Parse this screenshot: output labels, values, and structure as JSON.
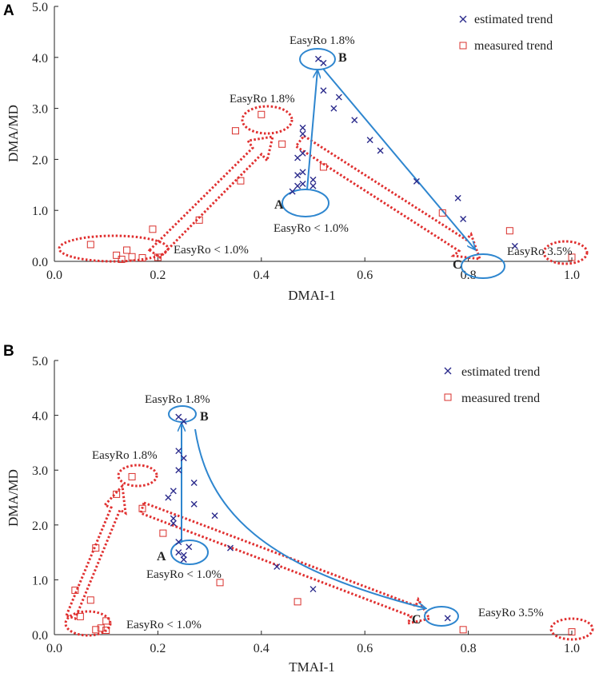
{
  "colors": {
    "estimated": "#2b2b8c",
    "measured": "#d9302c",
    "arrow_blue": "#2e86cf",
    "ellipse_red": "#e03030",
    "axis": "#222222"
  },
  "legend": {
    "estimated": "estimated trend",
    "measured": "measured trend"
  },
  "chart_data": [
    {
      "type": "scatter",
      "panel": "A",
      "xlabel": "DMAI-1",
      "ylabel": "DMA/MD",
      "xlim": [
        0.0,
        1.0
      ],
      "ylim": [
        0.0,
        5.0
      ],
      "xticks": [
        "0.0",
        "0.2",
        "0.4",
        "0.6",
        "0.8",
        "1.0"
      ],
      "yticks": [
        "0.0",
        "1.0",
        "2.0",
        "3.0",
        "4.0",
        "5.0"
      ],
      "series": [
        {
          "name": "estimated trend",
          "marker": "x",
          "points": [
            [
              0.51,
              3.97
            ],
            [
              0.52,
              3.89
            ],
            [
              0.52,
              3.35
            ],
            [
              0.55,
              3.22
            ],
            [
              0.54,
              3.0
            ],
            [
              0.58,
              2.77
            ],
            [
              0.61,
              2.38
            ],
            [
              0.63,
              2.17
            ],
            [
              0.48,
              2.62
            ],
            [
              0.48,
              2.5
            ],
            [
              0.48,
              2.12
            ],
            [
              0.47,
              2.03
            ],
            [
              0.48,
              1.75
            ],
            [
              0.47,
              1.69
            ],
            [
              0.48,
              1.52
            ],
            [
              0.5,
              1.6
            ],
            [
              0.47,
              1.48
            ],
            [
              0.5,
              1.48
            ],
            [
              0.46,
              1.37
            ],
            [
              0.7,
              1.57
            ],
            [
              0.78,
              1.24
            ],
            [
              0.79,
              0.83
            ],
            [
              0.89,
              0.3
            ]
          ]
        },
        {
          "name": "measured trend",
          "marker": "square",
          "points": [
            [
              0.4,
              2.88
            ],
            [
              0.35,
              2.56
            ],
            [
              0.44,
              2.3
            ],
            [
              0.52,
              1.85
            ],
            [
              0.36,
              1.58
            ],
            [
              0.28,
              0.81
            ],
            [
              0.19,
              0.63
            ],
            [
              0.07,
              0.33
            ],
            [
              0.14,
              0.22
            ],
            [
              0.12,
              0.12
            ],
            [
              0.15,
              0.09
            ],
            [
              0.17,
              0.07
            ],
            [
              0.2,
              0.08
            ],
            [
              0.13,
              0.04
            ],
            [
              0.75,
              0.95
            ],
            [
              0.88,
              0.6
            ],
            [
              1.0,
              0.08
            ]
          ]
        }
      ],
      "annotations": {
        "point_labels": [
          "A",
          "B",
          "C"
        ],
        "easyro": [
          "EasyRo 1.8%",
          "EasyRo 1.8%",
          "EasyRo < 1.0%",
          "EasyRo < 1.0%",
          "EasyRo 3.5%"
        ]
      }
    },
    {
      "type": "scatter",
      "panel": "B",
      "xlabel": "TMAI-1",
      "ylabel": "DMA/MD",
      "xlim": [
        0.0,
        1.0
      ],
      "ylim": [
        0.0,
        5.0
      ],
      "xticks": [
        "0.0",
        "0.2",
        "0.4",
        "0.6",
        "0.8",
        "1.0"
      ],
      "yticks": [
        "0.0",
        "1.0",
        "2.0",
        "3.0",
        "4.0",
        "5.0"
      ],
      "series": [
        {
          "name": "estimated trend",
          "marker": "x",
          "points": [
            [
              0.24,
              3.97
            ],
            [
              0.25,
              3.89
            ],
            [
              0.24,
              3.35
            ],
            [
              0.25,
              3.22
            ],
            [
              0.24,
              3.0
            ],
            [
              0.27,
              2.77
            ],
            [
              0.23,
              2.62
            ],
            [
              0.22,
              2.5
            ],
            [
              0.27,
              2.38
            ],
            [
              0.31,
              2.17
            ],
            [
              0.23,
              2.12
            ],
            [
              0.23,
              2.03
            ],
            [
              0.24,
              1.69
            ],
            [
              0.26,
              1.6
            ],
            [
              0.34,
              1.58
            ],
            [
              0.24,
              1.5
            ],
            [
              0.25,
              1.45
            ],
            [
              0.25,
              1.37
            ],
            [
              0.43,
              1.24
            ],
            [
              0.5,
              0.83
            ],
            [
              0.76,
              0.3
            ]
          ]
        },
        {
          "name": "measured trend",
          "marker": "square",
          "points": [
            [
              0.15,
              2.88
            ],
            [
              0.12,
              2.56
            ],
            [
              0.17,
              2.3
            ],
            [
              0.21,
              1.85
            ],
            [
              0.08,
              1.58
            ],
            [
              0.32,
              0.95
            ],
            [
              0.04,
              0.81
            ],
            [
              0.07,
              0.63
            ],
            [
              0.47,
              0.6
            ],
            [
              0.05,
              0.33
            ],
            [
              0.1,
              0.25
            ],
            [
              0.09,
              0.12
            ],
            [
              0.08,
              0.09
            ],
            [
              0.1,
              0.08
            ],
            [
              0.79,
              0.09
            ],
            [
              1.0,
              0.05
            ]
          ]
        }
      ],
      "annotations": {
        "point_labels": [
          "A",
          "B",
          "C"
        ],
        "easyro": [
          "EasyRo 1.8%",
          "EasyRo 1.8%",
          "EasyRo < 1.0%",
          "EasyRo < 1.0%",
          "EasyRo 3.5%"
        ]
      }
    }
  ]
}
